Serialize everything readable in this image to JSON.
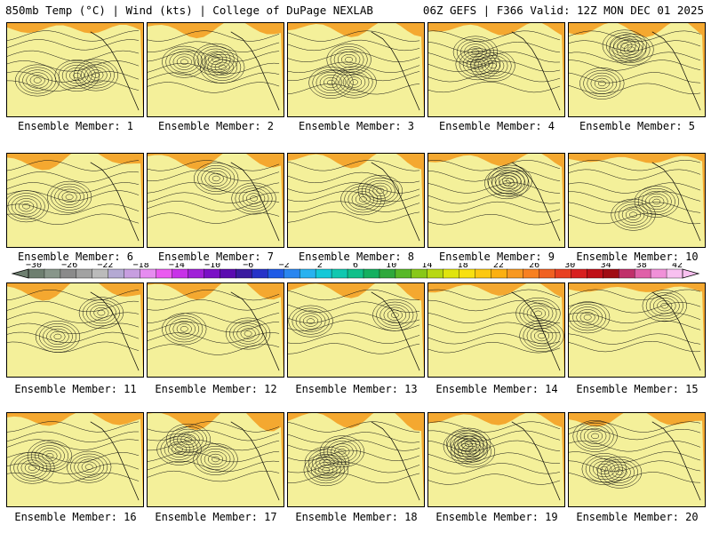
{
  "header": {
    "left": "850mb Temp (°C) | Wind (kts) | College of DuPage NEXLAB",
    "right": "06Z GEFS | F366 Valid: 12Z MON DEC 01 2025"
  },
  "panels": [
    {
      "label": "Ensemble Member: 1",
      "seed": 1
    },
    {
      "label": "Ensemble Member: 2",
      "seed": 2
    },
    {
      "label": "Ensemble Member: 3",
      "seed": 3
    },
    {
      "label": "Ensemble Member: 4",
      "seed": 4
    },
    {
      "label": "Ensemble Member: 5",
      "seed": 5
    },
    {
      "label": "Ensemble Member: 6",
      "seed": 6
    },
    {
      "label": "Ensemble Member: 7",
      "seed": 7
    },
    {
      "label": "Ensemble Member: 8",
      "seed": 8
    },
    {
      "label": "Ensemble Member: 9",
      "seed": 9
    },
    {
      "label": "Ensemble Member: 10",
      "seed": 10
    },
    {
      "label": "Ensemble Member: 11",
      "seed": 11
    },
    {
      "label": "Ensemble Member: 12",
      "seed": 12
    },
    {
      "label": "Ensemble Member: 13",
      "seed": 13
    },
    {
      "label": "Ensemble Member: 14",
      "seed": 14
    },
    {
      "label": "Ensemble Member: 15",
      "seed": 15
    },
    {
      "label": "Ensemble Member: 16",
      "seed": 16
    },
    {
      "label": "Ensemble Member: 17",
      "seed": 17
    },
    {
      "label": "Ensemble Member: 18",
      "seed": 18
    },
    {
      "label": "Ensemble Member: 19",
      "seed": 19
    },
    {
      "label": "Ensemble Member: 20",
      "seed": 20
    }
  ],
  "colorbar": {
    "ticks": [
      "−30",
      "−26",
      "−22",
      "−18",
      "−14",
      "−10",
      "−6",
      "−2",
      "2",
      "6",
      "10",
      "14",
      "18",
      "22",
      "26",
      "30",
      "34",
      "38",
      "42"
    ],
    "colors": [
      "#6e7f70",
      "#88968a",
      "#8a8a8a",
      "#a2a2a2",
      "#bbbbbb",
      "#b4a9d3",
      "#c79ee0",
      "#e68cf0",
      "#ea5af0",
      "#c832e8",
      "#a020d8",
      "#7a10c6",
      "#5a0ab0",
      "#3a1aa0",
      "#2632c8",
      "#1f5ae6",
      "#2a86f0",
      "#28b2f0",
      "#14c8d8",
      "#10c8b0",
      "#10c08a",
      "#14b060",
      "#2fa83c",
      "#58b828",
      "#88c818",
      "#b8d812",
      "#e0e40e",
      "#f8e010",
      "#fcc810",
      "#fcb010",
      "#f89820",
      "#f88020",
      "#f06020",
      "#e84020",
      "#d82020",
      "#c01018",
      "#a00c14",
      "#c0306a",
      "#e060a8",
      "#f090d8",
      "#f8c0f0"
    ]
  }
}
